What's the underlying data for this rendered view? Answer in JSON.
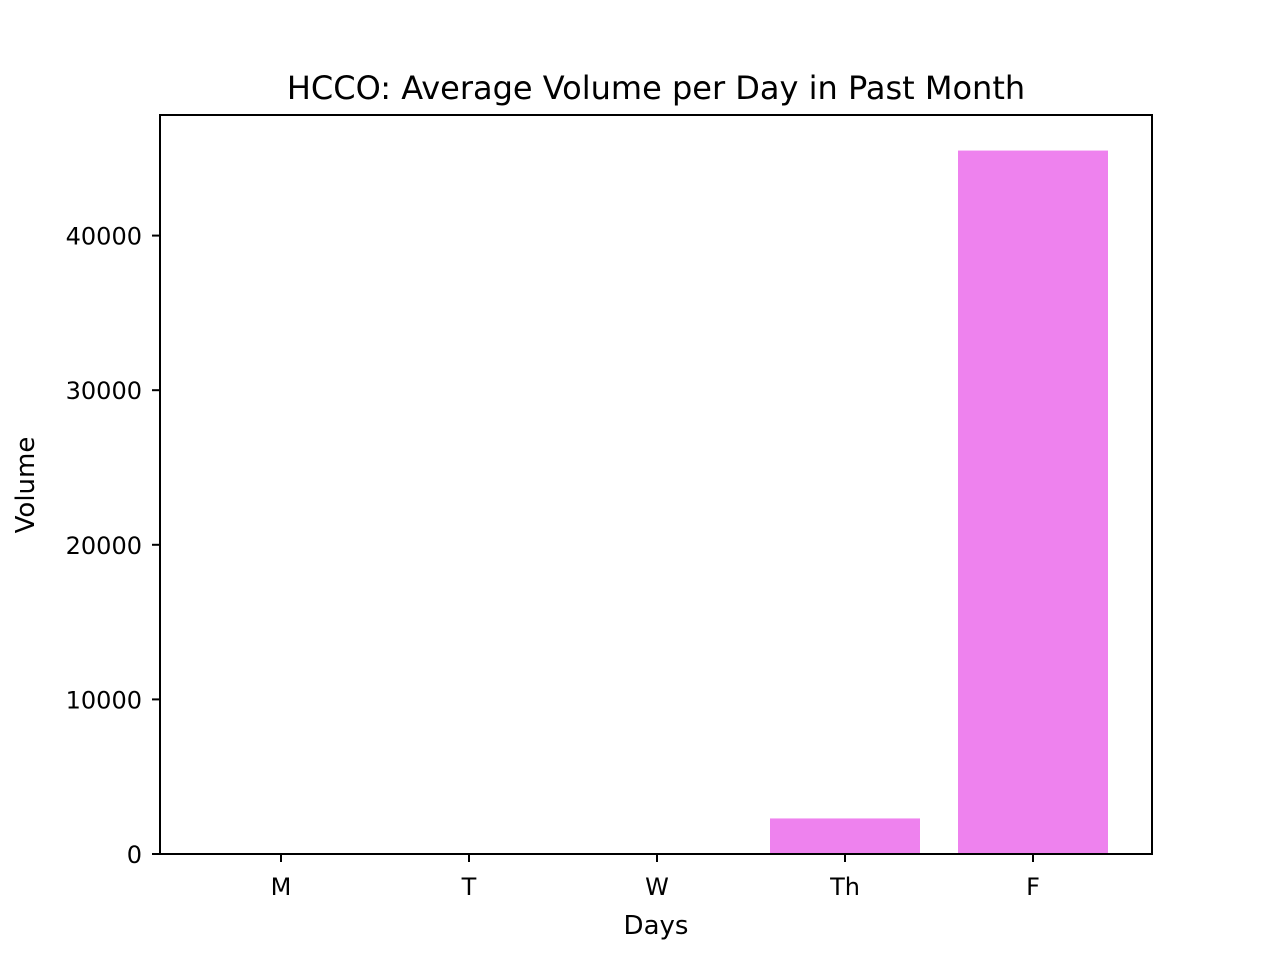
{
  "chart_data": {
    "type": "bar",
    "title": "HCCO: Average Volume per Day in Past Month",
    "xlabel": "Days",
    "ylabel": "Volume",
    "categories": [
      "M",
      "T",
      "W",
      "Th",
      "F"
    ],
    "values": [
      0,
      0,
      0,
      2300,
      45500
    ],
    "ylim": [
      0,
      47800
    ],
    "yticks": [
      0,
      10000,
      20000,
      30000,
      40000
    ],
    "ytick_labels": [
      "0",
      "10000",
      "20000",
      "30000",
      "40000"
    ],
    "grid": false,
    "bar_color": "#ee82ee"
  }
}
